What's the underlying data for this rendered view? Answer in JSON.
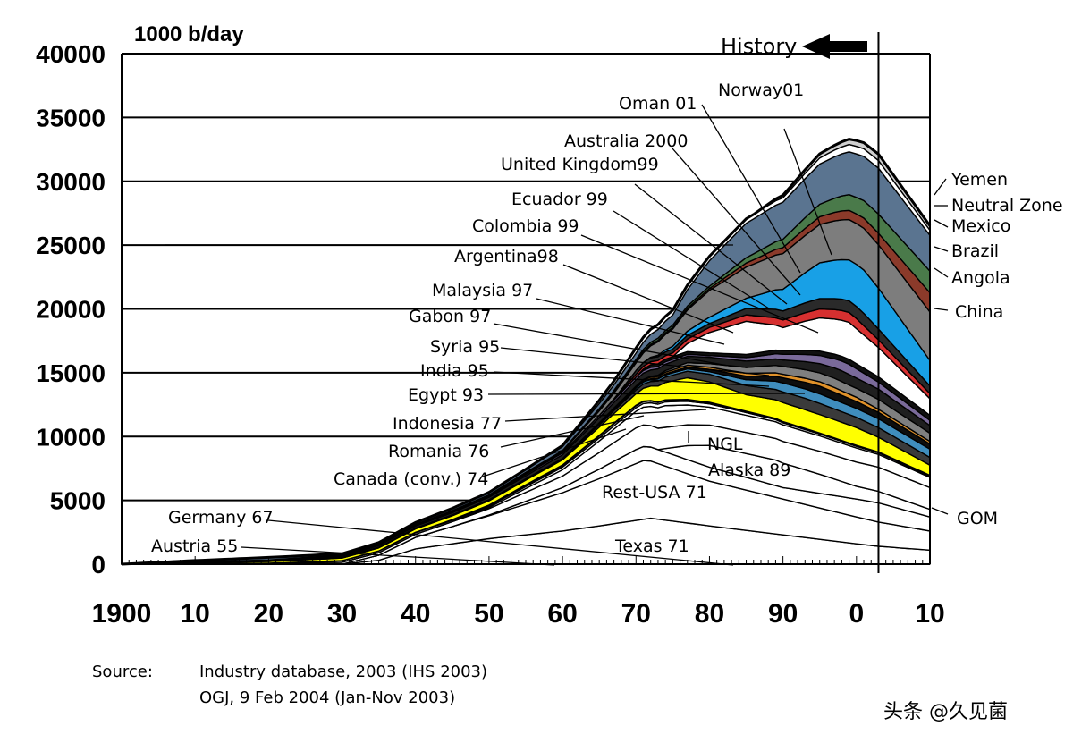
{
  "chart_data": {
    "type": "area",
    "ylabel": "1000 b/day",
    "ylim": [
      0,
      40000
    ],
    "xlim": [
      1900,
      2010
    ],
    "y_ticks": [
      {
        "value": 0,
        "label": "0"
      },
      {
        "value": 5000,
        "label": "5000"
      },
      {
        "value": 10000,
        "label": "10000"
      },
      {
        "value": 15000,
        "label": "15000"
      },
      {
        "value": 20000,
        "label": "20000"
      },
      {
        "value": 25000,
        "label": "25000"
      },
      {
        "value": 30000,
        "label": "30000"
      },
      {
        "value": 35000,
        "label": "35000"
      },
      {
        "value": 40000,
        "label": "40000"
      }
    ],
    "x_ticks": [
      {
        "value": 1900,
        "label": "1900"
      },
      {
        "value": 1910,
        "label": "10"
      },
      {
        "value": 1920,
        "label": "20"
      },
      {
        "value": 1930,
        "label": "30"
      },
      {
        "value": 1940,
        "label": "40"
      },
      {
        "value": 1950,
        "label": "50"
      },
      {
        "value": 1960,
        "label": "60"
      },
      {
        "value": 1970,
        "label": "70"
      },
      {
        "value": 1980,
        "label": "80"
      },
      {
        "value": 1990,
        "label": "90"
      },
      {
        "value": 2000,
        "label": "0"
      },
      {
        "value": 2010,
        "label": "10"
      }
    ],
    "history_divider_year": 2003,
    "history_label": "History",
    "series": [
      {
        "name": "Texas 71",
        "color": "#ffffff",
        "x": [
          1900,
          1930,
          1935,
          1940,
          1950,
          1960,
          1965,
          1972,
          1980,
          1990,
          2000,
          2003,
          2010
        ],
        "values": [
          0,
          0,
          300,
          1200,
          2000,
          2600,
          3000,
          3600,
          3000,
          2300,
          1600,
          1400,
          1100
        ]
      },
      {
        "name": "Rest-USA 71",
        "color": "#ffffff",
        "x": [
          1900,
          1930,
          1935,
          1940,
          1950,
          1960,
          1965,
          1971,
          1980,
          1990,
          2000,
          2003,
          2010
        ],
        "values": [
          0,
          0,
          400,
          900,
          1800,
          3000,
          3700,
          4600,
          3500,
          2800,
          2100,
          1900,
          1500
        ]
      },
      {
        "name": "GOM",
        "color": "#ffffff",
        "x": [
          1900,
          1945,
          1950,
          1960,
          1970,
          1980,
          1990,
          2000,
          2003,
          2010
        ],
        "values": [
          0,
          0,
          50,
          400,
          1100,
          1100,
          900,
          1400,
          1500,
          1100
        ]
      },
      {
        "name": "Alaska 89",
        "color": "#ffffff",
        "x": [
          1900,
          1973,
          1977,
          1980,
          1989,
          1995,
          2000,
          2003,
          2010
        ],
        "values": [
          0,
          0,
          1100,
          1700,
          2000,
          1500,
          1000,
          900,
          600
        ]
      },
      {
        "name": "NGL",
        "color": "#ffffff",
        "x": [
          1900,
          1920,
          1930,
          1940,
          1950,
          1960,
          1970,
          1980,
          1990,
          2000,
          2003,
          2010
        ],
        "values": [
          0,
          50,
          150,
          250,
          500,
          900,
          1700,
          1600,
          1700,
          1900,
          1900,
          1700
        ]
      },
      {
        "name": "Canada (conv.) 74",
        "color": "#ffffff",
        "x": [
          1900,
          1945,
          1950,
          1960,
          1970,
          1974,
          1980,
          1990,
          2000,
          2003,
          2010
        ],
        "values": [
          0,
          0,
          100,
          500,
          1300,
          1700,
          1400,
          1300,
          1100,
          1000,
          800
        ]
      },
      {
        "name": "Romania 76",
        "color": "#ffffff",
        "x": [
          1900,
          1910,
          1920,
          1930,
          1940,
          1950,
          1960,
          1970,
          1976,
          1990,
          2000,
          2003,
          2010
        ],
        "values": [
          0,
          30,
          20,
          120,
          120,
          100,
          200,
          280,
          300,
          160,
          130,
          120,
          100
        ]
      },
      {
        "name": "Germany 67",
        "color": "#ffffff",
        "x": [
          1900,
          1930,
          1940,
          1950,
          1960,
          1967,
          1980,
          1990,
          2000,
          2010
        ],
        "values": [
          0,
          5,
          20,
          40,
          110,
          160,
          90,
          70,
          60,
          50
        ]
      },
      {
        "name": "Austria 55",
        "color": "#ffffff",
        "x": [
          1900,
          1930,
          1940,
          1950,
          1955,
          1970,
          1990,
          2010
        ],
        "values": [
          0,
          2,
          10,
          40,
          70,
          50,
          20,
          15
        ]
      },
      {
        "name": "Indonesia 77",
        "color": "#ffff00",
        "x": [
          1900,
          1960,
          1970,
          1977,
          1980,
          1985,
          1990,
          2000,
          2003,
          2010
        ],
        "values": [
          0,
          400,
          900,
          1700,
          1600,
          1300,
          1500,
          1400,
          1150,
          800
        ]
      },
      {
        "name": "Egypt 93",
        "color": "#3a3a3a",
        "x": [
          1900,
          1950,
          1960,
          1970,
          1980,
          1993,
          2000,
          2003,
          2010
        ],
        "values": [
          0,
          50,
          60,
          300,
          600,
          900,
          800,
          750,
          600
        ]
      },
      {
        "name": "India 95",
        "color": "#3f8dbd",
        "x": [
          1900,
          1960,
          1970,
          1980,
          1990,
          1995,
          2000,
          2003,
          2010
        ],
        "values": [
          0,
          10,
          150,
          200,
          700,
          750,
          700,
          700,
          650
        ]
      },
      {
        "name": "Syria 95",
        "color": "#0e0e0e",
        "x": [
          1900,
          1968,
          1980,
          1990,
          1995,
          2000,
          2003,
          2010
        ],
        "values": [
          0,
          0,
          170,
          400,
          600,
          540,
          500,
          400
        ]
      },
      {
        "name": "Gabon 97",
        "color": "#e0922a",
        "x": [
          1900,
          1960,
          1970,
          1980,
          1990,
          1997,
          2000,
          2003,
          2010
        ],
        "values": [
          0,
          15,
          100,
          180,
          280,
          370,
          330,
          240,
          200
        ]
      },
      {
        "name": "Malaysia 97",
        "color": "#7f7f7f",
        "x": [
          1900,
          1970,
          1980,
          1990,
          1997,
          2000,
          2003,
          2010
        ],
        "values": [
          0,
          20,
          280,
          620,
          730,
          700,
          780,
          650
        ]
      },
      {
        "name": "Argentina 98",
        "color": "#1f1f1f",
        "x": [
          1900,
          1920,
          1930,
          1940,
          1950,
          1960,
          1970,
          1980,
          1990,
          1998,
          2000,
          2003,
          2010
        ],
        "values": [
          0,
          30,
          100,
          150,
          200,
          300,
          500,
          500,
          500,
          850,
          800,
          800,
          600
        ]
      },
      {
        "name": "Colombia 99",
        "color": "#7a6a9a",
        "x": [
          1900,
          1930,
          1940,
          1950,
          1960,
          1970,
          1980,
          1986,
          1990,
          1999,
          2003,
          2010
        ],
        "values": [
          0,
          40,
          70,
          100,
          150,
          220,
          130,
          300,
          450,
          800,
          550,
          400
        ]
      },
      {
        "name": "Ecuador 99",
        "color": "#101010",
        "x": [
          1900,
          1970,
          1972,
          1980,
          1990,
          1999,
          2003,
          2010
        ],
        "values": [
          0,
          0,
          200,
          210,
          290,
          380,
          410,
          400
        ]
      },
      {
        "name": "United Kingdom99",
        "color": "#ffffff",
        "x": [
          1900,
          1975,
          1980,
          1985,
          1990,
          1995,
          1999,
          2003,
          2010
        ],
        "values": [
          0,
          0,
          1600,
          2600,
          1800,
          2600,
          2900,
          2300,
          1300
        ]
      },
      {
        "name": "Australia 2000",
        "color": "#d63030",
        "x": [
          1900,
          1965,
          1970,
          1980,
          1990,
          2000,
          2003,
          2010
        ],
        "values": [
          0,
          0,
          200,
          400,
          600,
          800,
          600,
          400
        ]
      },
      {
        "name": "Oman 01",
        "color": "#2a2a2a",
        "x": [
          1900,
          1967,
          1970,
          1980,
          1990,
          2001,
          2003,
          2010
        ],
        "values": [
          0,
          0,
          300,
          300,
          700,
          960,
          850,
          600
        ]
      },
      {
        "name": "Norway 01",
        "color": "#18a0e6",
        "x": [
          1900,
          1971,
          1980,
          1985,
          1990,
          1995,
          2001,
          2003,
          2010
        ],
        "values": [
          0,
          0,
          500,
          800,
          1700,
          2800,
          3400,
          3200,
          2000
        ]
      },
      {
        "name": "China",
        "color": "#7d7d7d",
        "x": [
          1900,
          1960,
          1970,
          1980,
          1990,
          2000,
          2003,
          2010
        ],
        "values": [
          0,
          100,
          600,
          2100,
          2800,
          3200,
          3400,
          3800
        ]
      },
      {
        "name": "Angola",
        "color": "#8b3a2a",
        "x": [
          1900,
          1960,
          1970,
          1980,
          1990,
          2000,
          2003,
          2010
        ],
        "values": [
          0,
          0,
          100,
          150,
          470,
          750,
          900,
          1500
        ]
      },
      {
        "name": "Brazil",
        "color": "#4a7a4a",
        "x": [
          1900,
          1950,
          1960,
          1970,
          1980,
          1990,
          2000,
          2003,
          2010
        ],
        "values": [
          0,
          0,
          80,
          170,
          180,
          650,
          1300,
          1500,
          1700
        ]
      },
      {
        "name": "Mexico",
        "color": "#5a7490",
        "x": [
          1900,
          1920,
          1930,
          1940,
          1950,
          1960,
          1970,
          1975,
          1980,
          1985,
          1990,
          2000,
          2003,
          2010
        ],
        "values": [
          0,
          200,
          100,
          150,
          200,
          300,
          500,
          800,
          2000,
          2700,
          2900,
          3400,
          3600,
          2800
        ]
      },
      {
        "name": "Neutral Zone",
        "color": "#ffffff",
        "x": [
          1900,
          1955,
          1960,
          1970,
          1980,
          1990,
          2000,
          2003,
          2010
        ],
        "values": [
          0,
          0,
          100,
          400,
          350,
          350,
          600,
          600,
          400
        ]
      },
      {
        "name": "Yemen",
        "color": "#cfcfcf",
        "x": [
          1900,
          1986,
          1990,
          2000,
          2003,
          2010
        ],
        "values": [
          0,
          0,
          200,
          450,
          500,
          350
        ]
      }
    ],
    "labels": [
      {
        "text": "Oman 01"
      },
      {
        "text": "Norway01"
      },
      {
        "text": "Australia 2000"
      },
      {
        "text": "United Kingdom99"
      },
      {
        "text": "Ecuador 99"
      },
      {
        "text": "Colombia 99"
      },
      {
        "text": "Argentina98"
      },
      {
        "text": "Malaysia 97"
      },
      {
        "text": "Gabon 97"
      },
      {
        "text": "Syria 95"
      },
      {
        "text": "India 95"
      },
      {
        "text": "Egypt 93"
      },
      {
        "text": "Indonesia 77"
      },
      {
        "text": "Romania 76"
      },
      {
        "text": "Canada (conv.) 74"
      },
      {
        "text": "NGL"
      },
      {
        "text": "Alaska 89"
      },
      {
        "text": "Rest-USA 71"
      },
      {
        "text": "Germany 67"
      },
      {
        "text": "Austria 55"
      },
      {
        "text": "Texas 71"
      },
      {
        "text": "Yemen"
      },
      {
        "text": "Neutral Zone"
      },
      {
        "text": "Mexico"
      },
      {
        "text": "Brazil"
      },
      {
        "text": "Angola"
      },
      {
        "text": "China"
      },
      {
        "text": "GOM"
      }
    ]
  },
  "source": {
    "label": "Source:",
    "line1": "Industry database, 2003 (IHS 2003)",
    "line2": "OGJ, 9 Feb 2004 (Jan-Nov 2003)"
  },
  "watermark": "头条 @久见菌"
}
